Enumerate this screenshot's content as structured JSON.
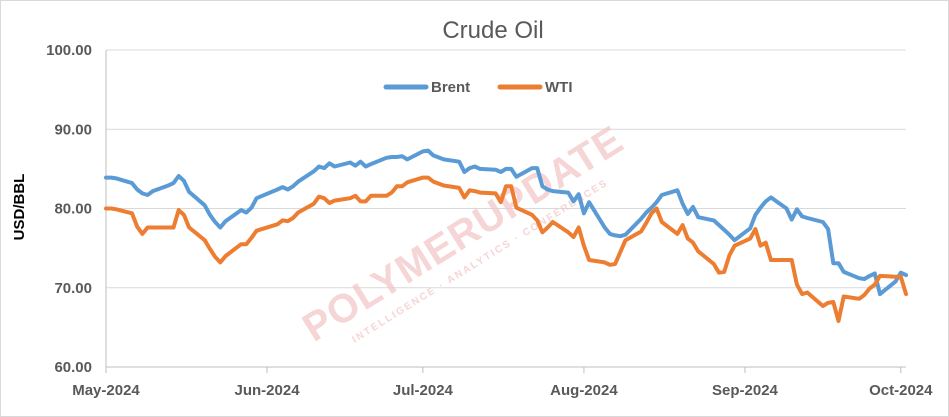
{
  "chart_data": {
    "type": "line",
    "title": "Crude Oil",
    "ylabel": "USD/BBL",
    "xlabel": "",
    "ylim": [
      60,
      100
    ],
    "y_ticks": [
      "60.00",
      "70.00",
      "80.00",
      "90.00",
      "100.00"
    ],
    "x_tick_labels": [
      "May-2024",
      "Jun-2024",
      "Jul-2024",
      "Aug-2024",
      "Sep-2024",
      "Oct-2024"
    ],
    "x_range": [
      "2024-05-01",
      "2024-10-02"
    ],
    "grid": "horizontal",
    "legend_position": "top-center",
    "colors": {
      "Brent": "#5b9bd5",
      "WTI": "#ed7d31"
    },
    "watermark": {
      "main": "POLYMERUPDATE",
      "sub": "INTELLIGENCE · ANALYTICS · CONFERENCES"
    },
    "series": [
      {
        "name": "Brent",
        "points": [
          [
            "2024-05-01",
            83.9
          ],
          [
            "2024-05-02",
            83.9
          ],
          [
            "2024-05-03",
            83.8
          ],
          [
            "2024-05-06",
            83.2
          ],
          [
            "2024-05-07",
            82.4
          ],
          [
            "2024-05-08",
            81.9
          ],
          [
            "2024-05-09",
            81.7
          ],
          [
            "2024-05-10",
            82.2
          ],
          [
            "2024-05-13",
            82.9
          ],
          [
            "2024-05-14",
            83.2
          ],
          [
            "2024-05-15",
            84.1
          ],
          [
            "2024-05-16",
            83.5
          ],
          [
            "2024-05-17",
            82.1
          ],
          [
            "2024-05-20",
            80.4
          ],
          [
            "2024-05-21",
            79.2
          ],
          [
            "2024-05-22",
            78.3
          ],
          [
            "2024-05-23",
            77.6
          ],
          [
            "2024-05-24",
            78.4
          ],
          [
            "2024-05-27",
            79.8
          ],
          [
            "2024-05-28",
            79.5
          ],
          [
            "2024-05-29",
            80.1
          ],
          [
            "2024-05-30",
            81.3
          ],
          [
            "2024-06-03",
            82.4
          ],
          [
            "2024-06-04",
            82.7
          ],
          [
            "2024-06-05",
            82.4
          ],
          [
            "2024-06-06",
            82.8
          ],
          [
            "2024-06-07",
            83.4
          ],
          [
            "2024-06-10",
            84.7
          ],
          [
            "2024-06-11",
            85.3
          ],
          [
            "2024-06-12",
            85.1
          ],
          [
            "2024-06-13",
            85.7
          ],
          [
            "2024-06-14",
            85.3
          ],
          [
            "2024-06-17",
            85.8
          ],
          [
            "2024-06-18",
            85.4
          ],
          [
            "2024-06-19",
            85.9
          ],
          [
            "2024-06-20",
            85.3
          ],
          [
            "2024-06-21",
            85.6
          ],
          [
            "2024-06-24",
            86.4
          ],
          [
            "2024-06-25",
            86.5
          ],
          [
            "2024-06-26",
            86.5
          ],
          [
            "2024-06-27",
            86.6
          ],
          [
            "2024-06-28",
            86.2
          ],
          [
            "2024-07-01",
            87.2
          ],
          [
            "2024-07-02",
            87.3
          ],
          [
            "2024-07-03",
            86.7
          ],
          [
            "2024-07-05",
            86.2
          ],
          [
            "2024-07-08",
            85.9
          ],
          [
            "2024-07-09",
            84.6
          ],
          [
            "2024-07-10",
            85.1
          ],
          [
            "2024-07-11",
            85.3
          ],
          [
            "2024-07-12",
            85.0
          ],
          [
            "2024-07-15",
            84.9
          ],
          [
            "2024-07-16",
            84.6
          ],
          [
            "2024-07-17",
            85.0
          ],
          [
            "2024-07-18",
            85.0
          ],
          [
            "2024-07-19",
            84.0
          ],
          [
            "2024-07-22",
            85.1
          ],
          [
            "2024-07-23",
            85.1
          ],
          [
            "2024-07-24",
            82.8
          ],
          [
            "2024-07-25",
            82.4
          ],
          [
            "2024-07-26",
            82.2
          ],
          [
            "2024-07-29",
            82.0
          ],
          [
            "2024-07-30",
            80.9
          ],
          [
            "2024-07-31",
            81.8
          ],
          [
            "2024-08-01",
            79.4
          ],
          [
            "2024-08-02",
            80.8
          ],
          [
            "2024-08-05",
            77.6
          ],
          [
            "2024-08-06",
            76.8
          ],
          [
            "2024-08-07",
            76.6
          ],
          [
            "2024-08-08",
            76.5
          ],
          [
            "2024-08-09",
            76.7
          ],
          [
            "2024-08-12",
            78.7
          ],
          [
            "2024-08-13",
            79.5
          ],
          [
            "2024-08-14",
            80.1
          ],
          [
            "2024-08-15",
            80.8
          ],
          [
            "2024-08-16",
            81.7
          ],
          [
            "2024-08-19",
            82.3
          ],
          [
            "2024-08-20",
            80.6
          ],
          [
            "2024-08-21",
            79.3
          ],
          [
            "2024-08-22",
            80.2
          ],
          [
            "2024-08-23",
            78.9
          ],
          [
            "2024-08-26",
            78.5
          ],
          [
            "2024-08-27",
            77.9
          ],
          [
            "2024-08-28",
            77.3
          ],
          [
            "2024-08-29",
            76.7
          ],
          [
            "2024-08-30",
            76.0
          ],
          [
            "2024-09-02",
            77.5
          ],
          [
            "2024-09-03",
            79.2
          ],
          [
            "2024-09-04",
            80.1
          ],
          [
            "2024-09-05",
            80.9
          ],
          [
            "2024-09-06",
            81.4
          ],
          [
            "2024-09-09",
            80.0
          ],
          [
            "2024-09-10",
            78.6
          ],
          [
            "2024-09-11",
            79.9
          ],
          [
            "2024-09-12",
            79.0
          ],
          [
            "2024-09-13",
            78.8
          ],
          [
            "2024-09-16",
            78.3
          ],
          [
            "2024-09-17",
            77.4
          ],
          [
            "2024-09-18",
            73.1
          ],
          [
            "2024-09-19",
            73.1
          ],
          [
            "2024-09-20",
            72.0
          ],
          [
            "2024-09-23",
            71.2
          ],
          [
            "2024-09-24",
            71.1
          ],
          [
            "2024-09-25",
            71.5
          ],
          [
            "2024-09-26",
            71.8
          ],
          [
            "2024-09-27",
            69.2
          ],
          [
            "2024-09-30",
            70.8
          ],
          [
            "2024-10-01",
            71.9
          ],
          [
            "2024-10-02",
            71.6
          ]
        ]
      },
      {
        "name": "WTI",
        "points": [
          [
            "2024-05-01",
            80.0
          ],
          [
            "2024-05-02",
            80.0
          ],
          [
            "2024-05-03",
            79.9
          ],
          [
            "2024-05-06",
            79.4
          ],
          [
            "2024-05-07",
            77.7
          ],
          [
            "2024-05-08",
            76.8
          ],
          [
            "2024-05-09",
            77.6
          ],
          [
            "2024-05-10",
            77.6
          ],
          [
            "2024-05-13",
            77.6
          ],
          [
            "2024-05-14",
            77.6
          ],
          [
            "2024-05-15",
            79.8
          ],
          [
            "2024-05-16",
            79.2
          ],
          [
            "2024-05-17",
            77.6
          ],
          [
            "2024-05-20",
            76.0
          ],
          [
            "2024-05-21",
            74.9
          ],
          [
            "2024-05-22",
            73.9
          ],
          [
            "2024-05-23",
            73.2
          ],
          [
            "2024-05-24",
            74.0
          ],
          [
            "2024-05-27",
            75.5
          ],
          [
            "2024-05-28",
            75.5
          ],
          [
            "2024-05-29",
            76.3
          ],
          [
            "2024-05-30",
            77.2
          ],
          [
            "2024-06-03",
            78.0
          ],
          [
            "2024-06-04",
            78.5
          ],
          [
            "2024-06-05",
            78.4
          ],
          [
            "2024-06-06",
            78.8
          ],
          [
            "2024-06-07",
            79.5
          ],
          [
            "2024-06-10",
            80.6
          ],
          [
            "2024-06-11",
            81.5
          ],
          [
            "2024-06-12",
            81.3
          ],
          [
            "2024-06-13",
            80.7
          ],
          [
            "2024-06-14",
            81.0
          ],
          [
            "2024-06-17",
            81.3
          ],
          [
            "2024-06-18",
            81.6
          ],
          [
            "2024-06-19",
            80.9
          ],
          [
            "2024-06-20",
            80.9
          ],
          [
            "2024-06-21",
            81.6
          ],
          [
            "2024-06-24",
            81.6
          ],
          [
            "2024-06-25",
            82.0
          ],
          [
            "2024-06-26",
            82.8
          ],
          [
            "2024-06-27",
            82.8
          ],
          [
            "2024-06-28",
            83.3
          ],
          [
            "2024-07-01",
            83.9
          ],
          [
            "2024-07-02",
            83.9
          ],
          [
            "2024-07-03",
            83.4
          ],
          [
            "2024-07-05",
            82.9
          ],
          [
            "2024-07-08",
            82.6
          ],
          [
            "2024-07-09",
            81.4
          ],
          [
            "2024-07-10",
            82.3
          ],
          [
            "2024-07-11",
            82.2
          ],
          [
            "2024-07-12",
            82.0
          ],
          [
            "2024-07-15",
            81.9
          ],
          [
            "2024-07-16",
            80.8
          ],
          [
            "2024-07-17",
            82.8
          ],
          [
            "2024-07-18",
            82.8
          ],
          [
            "2024-07-19",
            80.1
          ],
          [
            "2024-07-22",
            79.2
          ],
          [
            "2024-07-23",
            78.5
          ],
          [
            "2024-07-24",
            77.0
          ],
          [
            "2024-07-25",
            77.6
          ],
          [
            "2024-07-26",
            78.3
          ],
          [
            "2024-07-29",
            77.0
          ],
          [
            "2024-07-30",
            76.4
          ],
          [
            "2024-07-31",
            77.6
          ],
          [
            "2024-08-01",
            75.3
          ],
          [
            "2024-08-02",
            73.5
          ],
          [
            "2024-08-05",
            73.2
          ],
          [
            "2024-08-06",
            72.9
          ],
          [
            "2024-08-07",
            73.0
          ],
          [
            "2024-08-08",
            74.5
          ],
          [
            "2024-08-09",
            76.0
          ],
          [
            "2024-08-12",
            77.1
          ],
          [
            "2024-08-13",
            78.2
          ],
          [
            "2024-08-14",
            79.4
          ],
          [
            "2024-08-15",
            80.0
          ],
          [
            "2024-08-16",
            78.3
          ],
          [
            "2024-08-19",
            76.8
          ],
          [
            "2024-08-20",
            77.9
          ],
          [
            "2024-08-21",
            76.2
          ],
          [
            "2024-08-22",
            75.7
          ],
          [
            "2024-08-23",
            74.6
          ],
          [
            "2024-08-26",
            73.0
          ],
          [
            "2024-08-27",
            71.9
          ],
          [
            "2024-08-28",
            72.0
          ],
          [
            "2024-08-29",
            74.1
          ],
          [
            "2024-08-30",
            75.3
          ],
          [
            "2024-09-02",
            76.2
          ],
          [
            "2024-09-03",
            77.4
          ],
          [
            "2024-09-04",
            75.3
          ],
          [
            "2024-09-05",
            75.7
          ],
          [
            "2024-09-06",
            73.5
          ],
          [
            "2024-09-09",
            73.5
          ],
          [
            "2024-09-10",
            73.5
          ],
          [
            "2024-09-11",
            70.4
          ],
          [
            "2024-09-12",
            69.2
          ],
          [
            "2024-09-13",
            69.4
          ],
          [
            "2024-09-16",
            67.7
          ],
          [
            "2024-09-17",
            68.1
          ],
          [
            "2024-09-18",
            68.2
          ],
          [
            "2024-09-19",
            65.8
          ],
          [
            "2024-09-20",
            68.9
          ],
          [
            "2024-09-23",
            68.6
          ],
          [
            "2024-09-24",
            69.1
          ],
          [
            "2024-09-25",
            69.9
          ],
          [
            "2024-09-26",
            70.4
          ],
          [
            "2024-09-27",
            71.5
          ],
          [
            "2024-09-30",
            71.4
          ],
          [
            "2024-10-01",
            71.4
          ],
          [
            "2024-10-02",
            69.2
          ]
        ]
      }
    ]
  }
}
